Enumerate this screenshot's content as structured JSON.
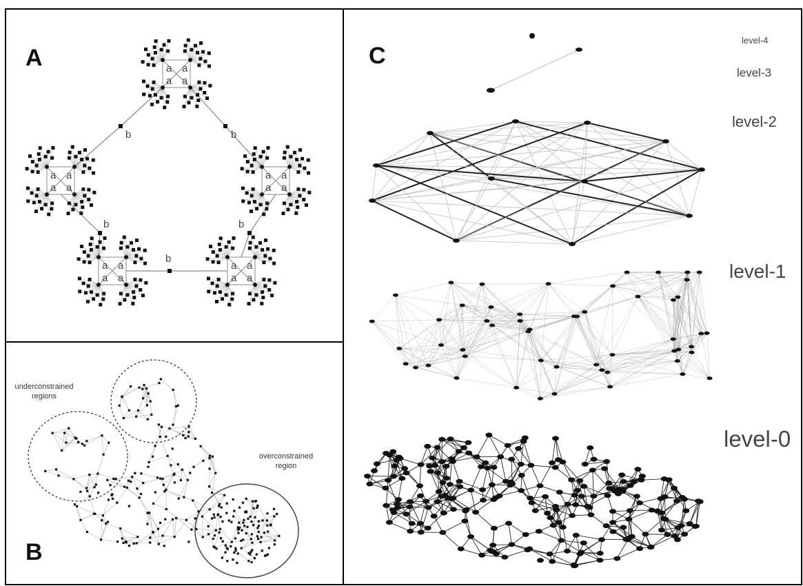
{
  "panels": {
    "a": {
      "letter": "A",
      "hub_label": "a",
      "bridge_label": "b"
    },
    "b": {
      "letter": "B",
      "underconstrained_label": [
        "underconstrained",
        "regions"
      ],
      "overconstrained_label": [
        "overconstrained",
        "region"
      ]
    },
    "c": {
      "letter": "C",
      "levels": [
        {
          "key": "level4",
          "label": "level-4"
        },
        {
          "key": "level3",
          "label": "level-3"
        },
        {
          "key": "level2",
          "label": "level-2"
        },
        {
          "key": "level1",
          "label": "level-1"
        },
        {
          "key": "level0",
          "label": "level-0"
        }
      ]
    }
  },
  "colors": {
    "node": "#111111",
    "edge_light": "#bdbdbd",
    "edge_mid": "#888888",
    "edge_dark": "#222222",
    "frame": "#000000"
  }
}
